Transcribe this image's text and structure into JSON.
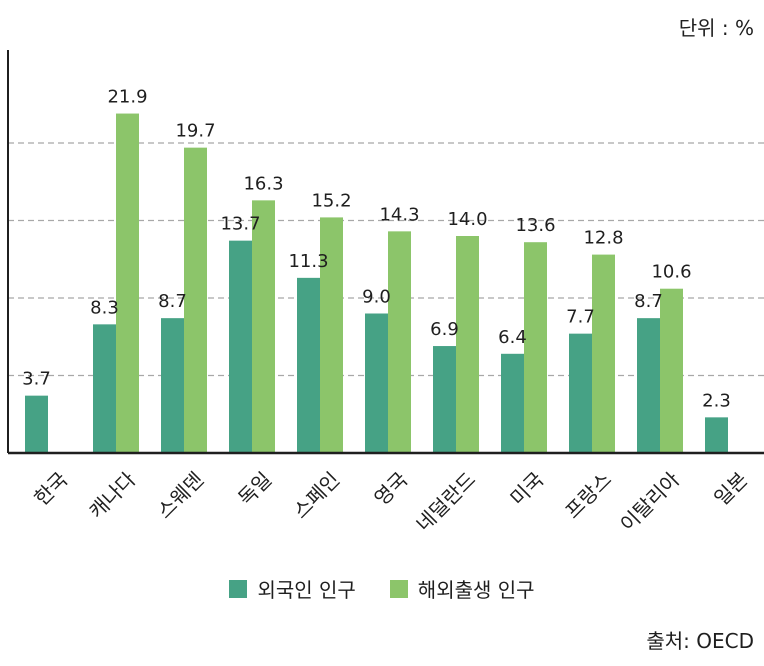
{
  "unit_text": "단위 : %",
  "source_text": "출처: OECD",
  "colors": {
    "foreign": "#46a285",
    "foreign_born": "#8cc56a",
    "axis": "#1f1f1f",
    "grid": "#a8a8a8",
    "text": "#1f1f1f"
  },
  "chart_data": {
    "type": "bar",
    "categories": [
      "한국",
      "캐나다",
      "스웨덴",
      "독일",
      "스페인",
      "영국",
      "네덜란드",
      "미국",
      "프랑스",
      "이탈리아",
      "일본"
    ],
    "series": [
      {
        "name": "외국인 인구",
        "values": [
          3.7,
          8.3,
          8.7,
          13.7,
          11.3,
          9.0,
          6.9,
          6.4,
          7.7,
          8.7,
          2.3
        ]
      },
      {
        "name": "해외출생 인구",
        "values": [
          null,
          21.9,
          19.7,
          16.3,
          15.2,
          14.3,
          14.0,
          13.6,
          12.8,
          10.6,
          null
        ]
      }
    ],
    "value_labels": [
      [
        "3.7",
        "8.3",
        "8.7",
        "13.7",
        "11.3",
        "9.0",
        "6.9",
        "6.4",
        "7.7",
        "8.7",
        "2.3"
      ],
      [
        "",
        "21.9",
        "19.7",
        "16.3",
        "15.2",
        "14.3",
        "14.0",
        "13.6",
        "12.8",
        "10.6",
        ""
      ]
    ],
    "ylim": [
      0,
      25
    ],
    "grid": true,
    "legend_position": "bottom"
  }
}
